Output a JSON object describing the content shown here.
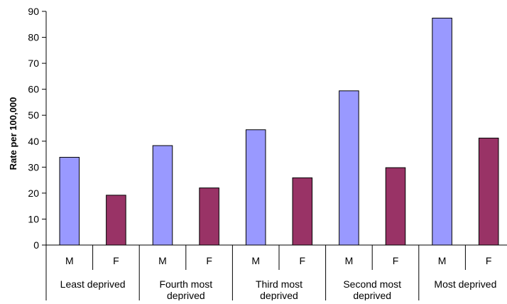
{
  "chart_data": {
    "type": "bar",
    "title": "",
    "ylabel": "Rate per 100,000",
    "ylim": [
      0,
      90
    ],
    "yticks": [
      0,
      10,
      20,
      30,
      40,
      50,
      60,
      70,
      80,
      90
    ],
    "grid": false,
    "legend": "none",
    "groups": [
      {
        "label": "Least deprived",
        "bars": [
          {
            "category": "M",
            "value": 33.8
          },
          {
            "category": "F",
            "value": 19.2
          }
        ]
      },
      {
        "label": "Fourth most deprived",
        "bars": [
          {
            "category": "M",
            "value": 38.3
          },
          {
            "category": "F",
            "value": 22.0
          }
        ]
      },
      {
        "label": "Third most deprived",
        "bars": [
          {
            "category": "M",
            "value": 44.4
          },
          {
            "category": "F",
            "value": 25.9
          }
        ]
      },
      {
        "label": "Second most deprived",
        "bars": [
          {
            "category": "M",
            "value": 59.4
          },
          {
            "category": "F",
            "value": 29.8
          }
        ]
      },
      {
        "label": "Most deprived",
        "bars": [
          {
            "category": "M",
            "value": 87.4
          },
          {
            "category": "F",
            "value": 41.2
          }
        ]
      }
    ],
    "colors": {
      "M": "#9999ff",
      "F": "#993366"
    }
  }
}
